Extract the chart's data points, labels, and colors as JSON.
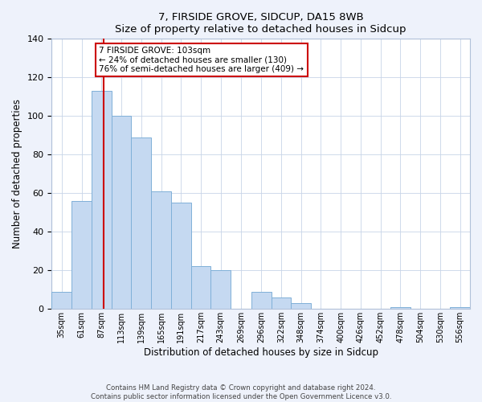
{
  "title": "7, FIRSIDE GROVE, SIDCUP, DA15 8WB",
  "subtitle": "Size of property relative to detached houses in Sidcup",
  "xlabel": "Distribution of detached houses by size in Sidcup",
  "ylabel": "Number of detached properties",
  "bin_labels": [
    "35sqm",
    "61sqm",
    "87sqm",
    "113sqm",
    "139sqm",
    "165sqm",
    "191sqm",
    "217sqm",
    "243sqm",
    "269sqm",
    "296sqm",
    "322sqm",
    "348sqm",
    "374sqm",
    "400sqm",
    "426sqm",
    "452sqm",
    "478sqm",
    "504sqm",
    "530sqm",
    "556sqm"
  ],
  "bar_values": [
    9,
    56,
    113,
    100,
    89,
    61,
    55,
    22,
    20,
    0,
    9,
    6,
    3,
    0,
    0,
    0,
    0,
    1,
    0,
    0,
    1
  ],
  "bar_color": "#c5d9f1",
  "bar_edge_color": "#7fb0d8",
  "property_line_x": 103,
  "bin_edges": [
    35,
    61,
    87,
    113,
    139,
    165,
    191,
    217,
    243,
    269,
    296,
    322,
    348,
    374,
    400,
    426,
    452,
    478,
    504,
    530,
    556,
    582
  ],
  "ylim": [
    0,
    140
  ],
  "yticks": [
    0,
    20,
    40,
    60,
    80,
    100,
    120,
    140
  ],
  "annotation_title": "7 FIRSIDE GROVE: 103sqm",
  "annotation_line1": "← 24% of detached houses are smaller (130)",
  "annotation_line2": "76% of semi-detached houses are larger (409) →",
  "red_line_color": "#cc0000",
  "annotation_box_color": "#ffffff",
  "annotation_box_edge_color": "#cc0000",
  "footer_line1": "Contains HM Land Registry data © Crown copyright and database right 2024.",
  "footer_line2": "Contains public sector information licensed under the Open Government Licence v3.0.",
  "bg_color": "#eef2fb",
  "plot_bg_color": "#ffffff"
}
